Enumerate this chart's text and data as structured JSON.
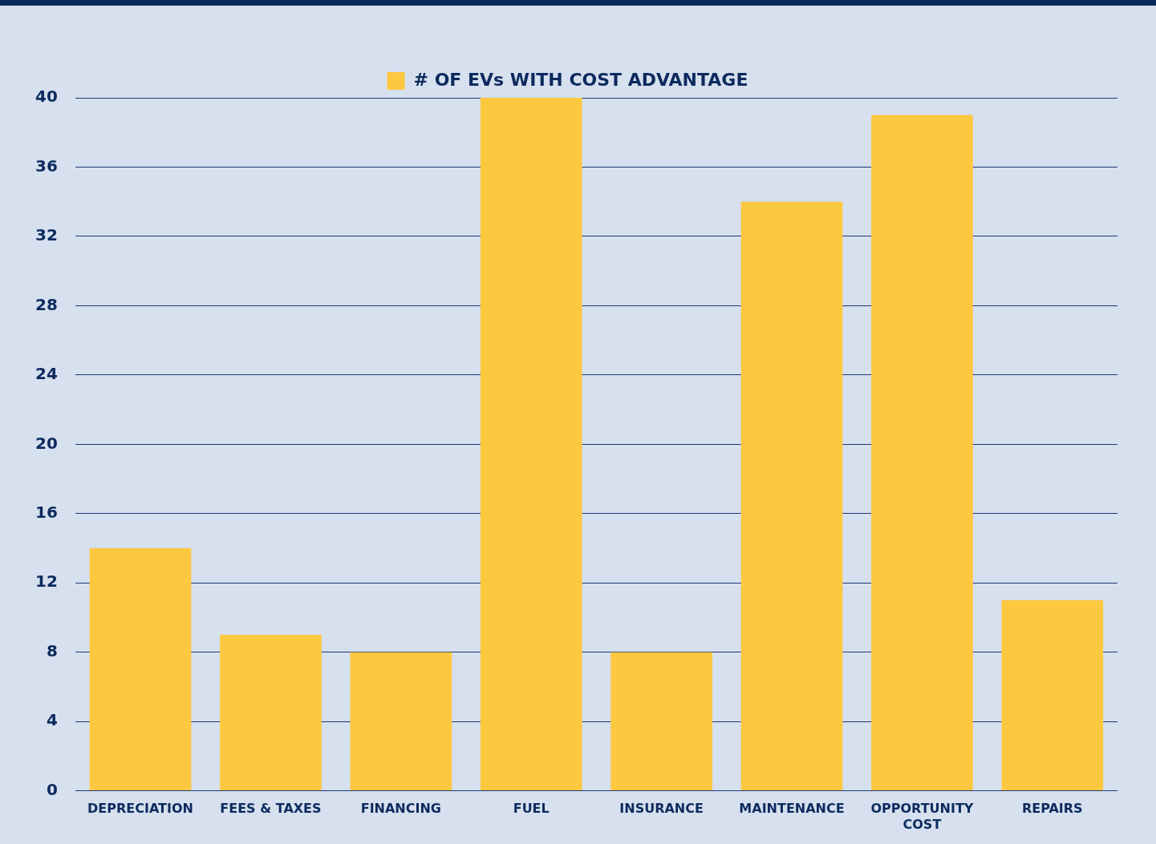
{
  "chart_data": {
    "type": "bar",
    "categories": [
      "DEPRECIATION",
      "FEES & TAXES",
      "FINANCING",
      "FUEL",
      "INSURANCE",
      "MAINTENANCE",
      "OPPORTUNITY COST",
      "REPAIRS"
    ],
    "series": [
      {
        "name": "# OF EVs WITH COST ADVANTAGE",
        "color": "#fcc83f",
        "values": [
          14,
          9,
          8,
          40,
          8,
          34,
          39,
          11
        ]
      }
    ],
    "ylim": [
      0,
      40
    ],
    "yticks": [
      0,
      4,
      8,
      12,
      16,
      20,
      24,
      28,
      32,
      36,
      40
    ],
    "grid": "y",
    "legend": "top"
  }
}
